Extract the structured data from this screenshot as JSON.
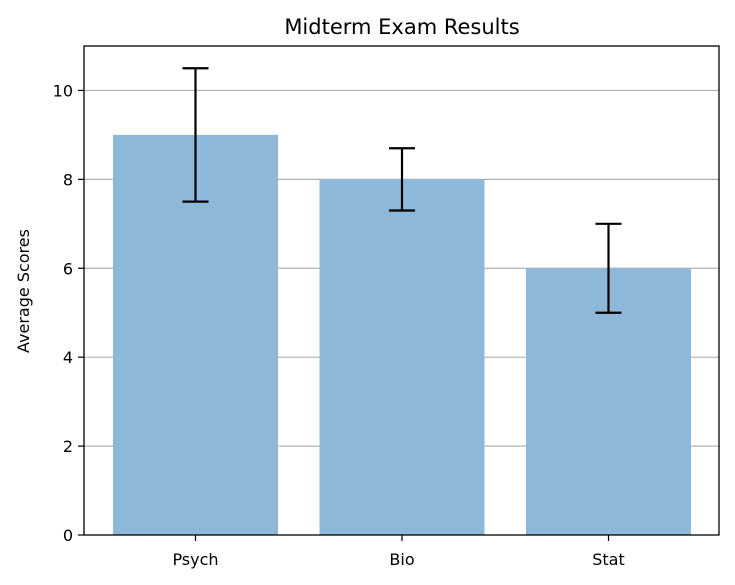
{
  "chart_data": {
    "type": "bar",
    "title": "Midterm Exam Results",
    "xlabel": "",
    "ylabel": "Average Scores",
    "categories": [
      "Psych",
      "Bio",
      "Stat"
    ],
    "values": [
      9,
      8,
      6
    ],
    "errors": [
      1.5,
      0.7,
      1.0
    ],
    "ylim": [
      0,
      11
    ],
    "yticks": [
      0,
      2,
      4,
      6,
      8,
      10
    ],
    "grid": "y",
    "bar_color": "#8db8d9",
    "grid_color": "#b0b0b0"
  }
}
